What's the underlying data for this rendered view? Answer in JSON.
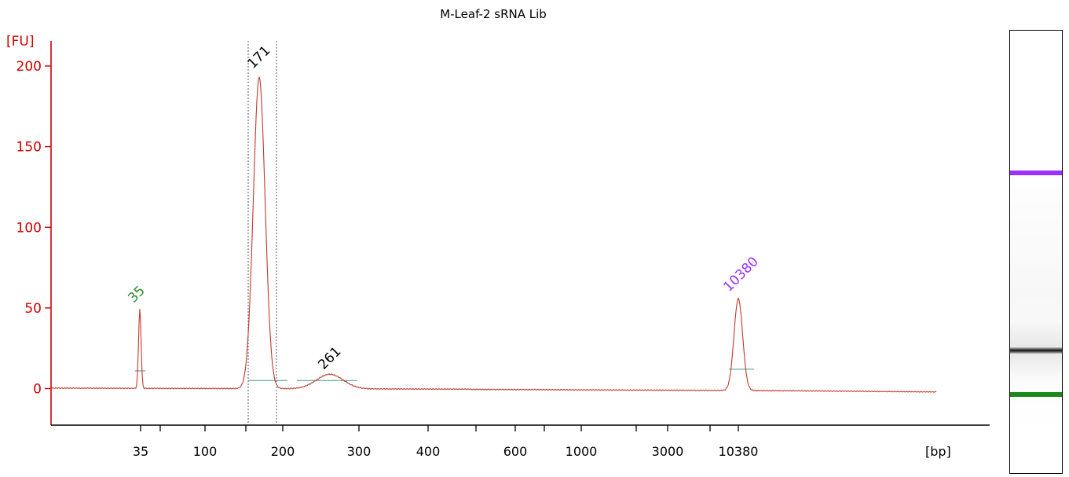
{
  "chart_data": {
    "type": "line",
    "title": "M-Leaf-2 sRNA Lib",
    "ylabel": "[FU]",
    "xlabel": "[bp]",
    "ylim": [
      -22,
      215
    ],
    "yticks": [
      0,
      50,
      100,
      150,
      200
    ],
    "xtick_labels": [
      "35",
      "100",
      "200",
      "300",
      "400",
      "600",
      "1000",
      "3000",
      "10380"
    ],
    "grid": false,
    "colors": {
      "axis": "#d00000",
      "trace": "#c0392b",
      "ladder_marker": "#2a8f2a",
      "upper_marker": "#9b30ff",
      "peak_label": "#000000"
    },
    "peaks": [
      {
        "label": "35",
        "color": "#2a8f2a",
        "height": 49
      },
      {
        "label": "171",
        "color": "#000000",
        "height": 193
      },
      {
        "label": "261",
        "color": "#000000",
        "height": 9
      },
      {
        "label": "10380",
        "color": "#9b30ff",
        "height": 57
      }
    ]
  },
  "gel": {
    "bands": [
      {
        "name": "upper-marker",
        "color": "#9b30ff",
        "position": 0.32
      },
      {
        "name": "sample",
        "color": "#111111",
        "position": 0.72
      },
      {
        "name": "lower-marker",
        "color": "#1a8a1a",
        "position": 0.82
      }
    ]
  }
}
